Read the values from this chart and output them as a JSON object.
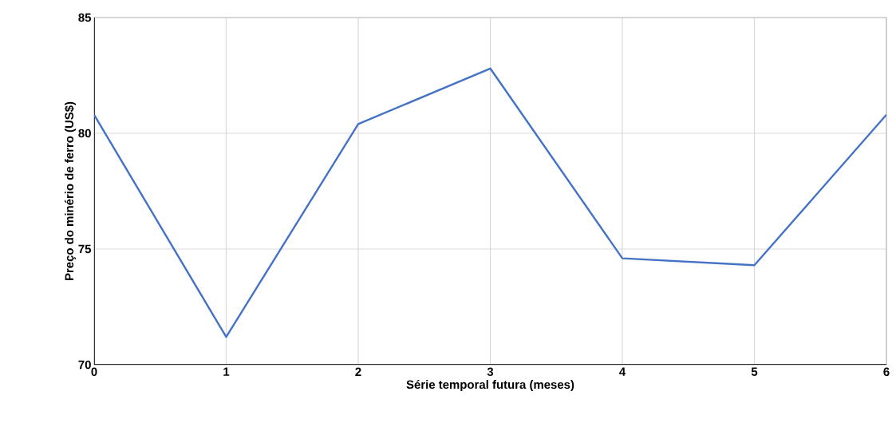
{
  "chart_data": {
    "type": "line",
    "xlabel": "Série temporal futura (meses)",
    "ylabel": "Preço do minério de ferro (US$)",
    "x": [
      0,
      1,
      2,
      3,
      4,
      5,
      6
    ],
    "series": [
      {
        "color": "#4472c4",
        "values": [
          80.8,
          71.2,
          80.4,
          82.8,
          74.6,
          74.3,
          80.8
        ]
      }
    ],
    "xlim": [
      0,
      6
    ],
    "xticks": [
      0,
      1,
      2,
      3,
      4,
      5,
      6
    ],
    "ylim": [
      70,
      85
    ],
    "yticks": [
      70,
      75,
      80,
      85
    ],
    "grid": true,
    "marker": "none",
    "line_style": "solid"
  }
}
